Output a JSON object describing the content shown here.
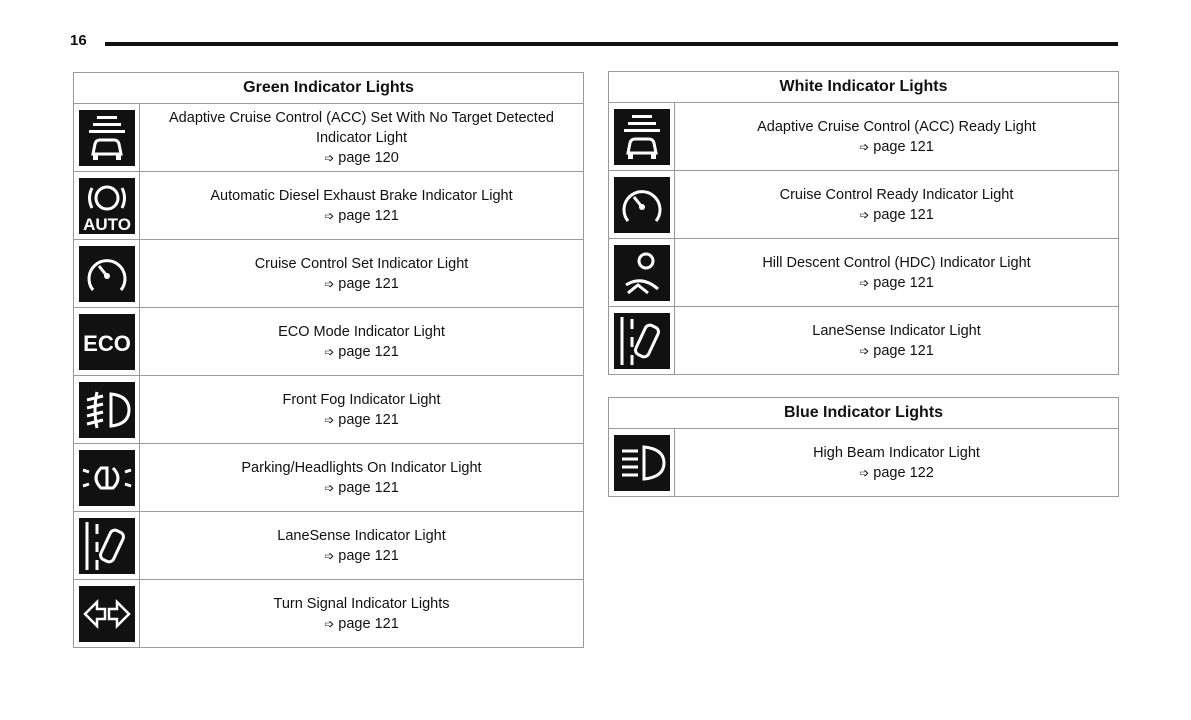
{
  "page_number": "16",
  "arrow": "➩",
  "green": {
    "title": "Green Indicator Lights",
    "items": [
      {
        "icon": "acc-no-target-icon",
        "label": "Adaptive Cruise Control (ACC) Set With No Target Detected Indicator Light",
        "page": "page 120"
      },
      {
        "icon": "diesel-exhaust-brake-auto-icon",
        "label": "Automatic Diesel Exhaust Brake Indicator Light",
        "page": "page 121",
        "icon_text": "AUTO"
      },
      {
        "icon": "cruise-control-set-icon",
        "label": "Cruise Control Set Indicator Light",
        "page": "page 121"
      },
      {
        "icon": "eco-mode-icon",
        "label": "ECO Mode Indicator Light",
        "page": "page 121",
        "icon_text": "ECO"
      },
      {
        "icon": "front-fog-icon",
        "label": "Front Fog Indicator Light",
        "page": "page 121"
      },
      {
        "icon": "parking-lights-icon",
        "label": "Parking/Headlights On Indicator Light",
        "page": "page 121"
      },
      {
        "icon": "lanesense-icon",
        "label": "LaneSense Indicator Light",
        "page": "page 121"
      },
      {
        "icon": "turn-signal-icon",
        "label": "Turn Signal Indicator Lights",
        "page": "page 121"
      }
    ]
  },
  "white": {
    "title": "White Indicator Lights",
    "items": [
      {
        "icon": "acc-ready-icon",
        "label": "Adaptive Cruise Control (ACC) Ready Light",
        "page": "page 121"
      },
      {
        "icon": "cruise-control-ready-icon",
        "label": "Cruise Control Ready Indicator Light",
        "page": "page 121"
      },
      {
        "icon": "hill-descent-icon",
        "label": "Hill Descent Control (HDC) Indicator Light",
        "page": "page 121"
      },
      {
        "icon": "lanesense-icon",
        "label": "LaneSense Indicator Light",
        "page": "page 121"
      }
    ]
  },
  "blue": {
    "title": "Blue Indicator Lights",
    "items": [
      {
        "icon": "high-beam-icon",
        "label": "High Beam Indicator Light",
        "page": "page 122"
      }
    ]
  }
}
